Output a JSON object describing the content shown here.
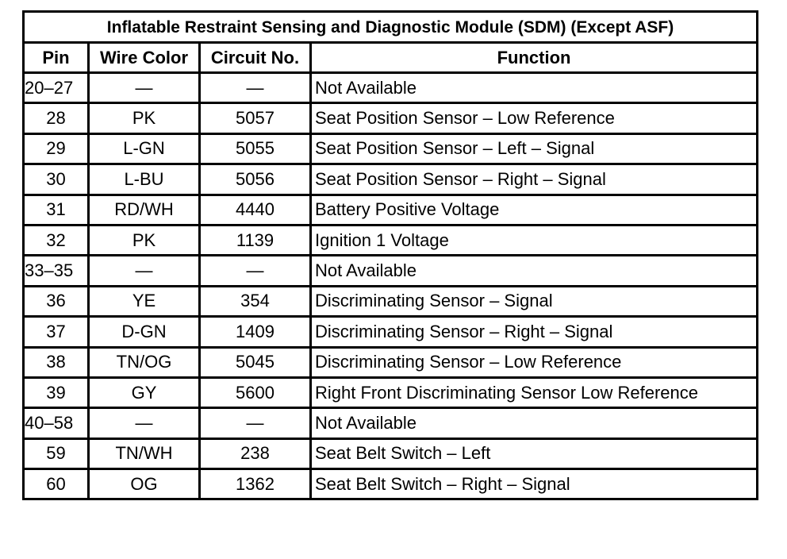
{
  "title": "Inflatable Restraint Sensing and Diagnostic Module (SDM) (Except ASF)",
  "columns": [
    "Pin",
    "Wire Color",
    "Circuit No.",
    "Function"
  ],
  "rows": [
    [
      "20–27",
      "—",
      "—",
      "Not Available"
    ],
    [
      "28",
      "PK",
      "5057",
      "Seat Position Sensor – Low Reference"
    ],
    [
      "29",
      "L-GN",
      "5055",
      "Seat Position Sensor – Left – Signal"
    ],
    [
      "30",
      "L-BU",
      "5056",
      "Seat Position Sensor – Right – Signal"
    ],
    [
      "31",
      "RD/WH",
      "4440",
      "Battery Positive Voltage"
    ],
    [
      "32",
      "PK",
      "1139",
      "Ignition 1 Voltage"
    ],
    [
      "33–35",
      "—",
      "—",
      "Not Available"
    ],
    [
      "36",
      "YE",
      "354",
      "Discriminating Sensor – Signal"
    ],
    [
      "37",
      "D-GN",
      "1409",
      "Discriminating Sensor – Right – Signal"
    ],
    [
      "38",
      "TN/OG",
      "5045",
      "Discriminating Sensor – Low Reference"
    ],
    [
      "39",
      "GY",
      "5600",
      "Right Front Discriminating Sensor Low Reference"
    ],
    [
      "40–58",
      "—",
      "—",
      "Not Available"
    ],
    [
      "59",
      "TN/WH",
      "238",
      "Seat Belt Switch – Left"
    ],
    [
      "60",
      "OG",
      "1362",
      "Seat Belt Switch – Right – Signal"
    ]
  ]
}
